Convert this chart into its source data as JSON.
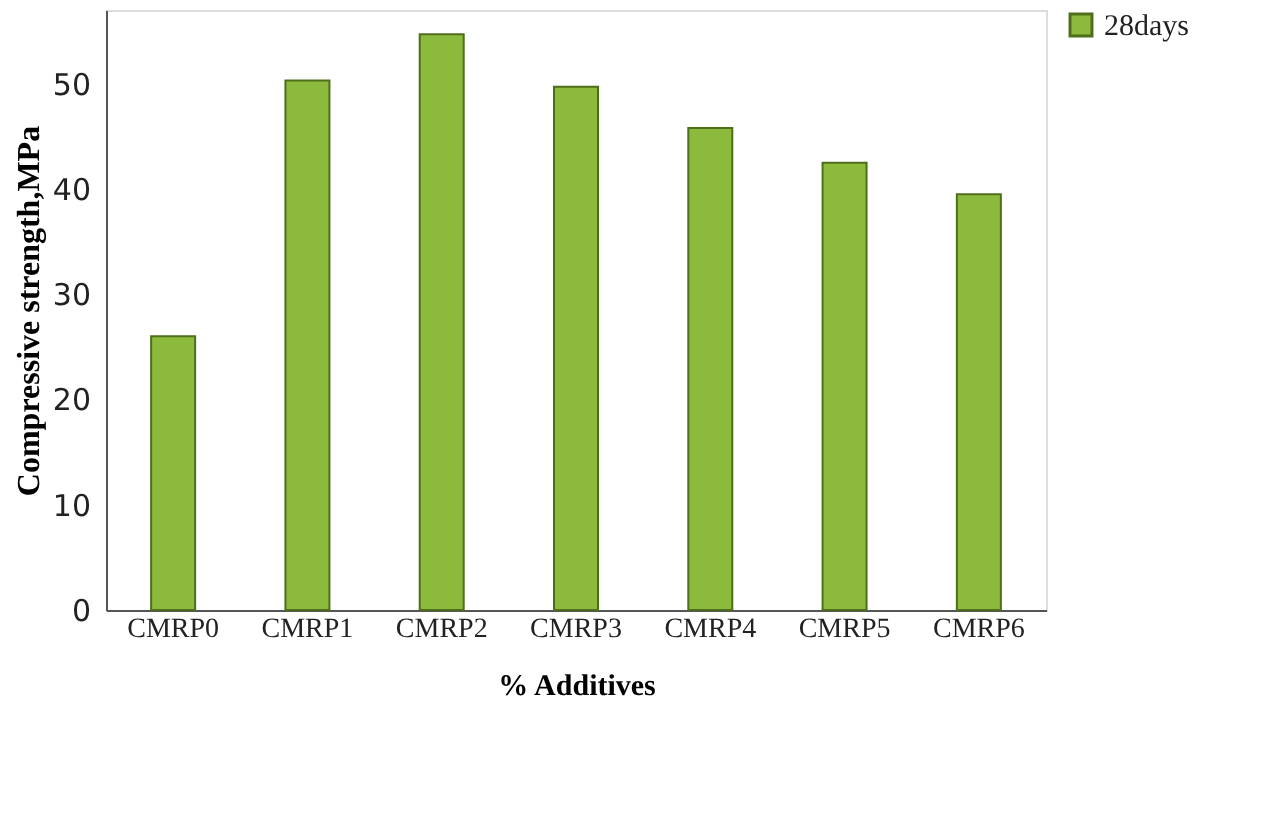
{
  "chart_data": {
    "type": "bar",
    "xlabel": "% Additives",
    "ylabel": "Compressive strength,MPa",
    "categories": [
      "CMRP0",
      "CMRP1",
      "CMRP2",
      "CMRP3",
      "CMRP4",
      "CMRP5",
      "CMRP6"
    ],
    "series": [
      {
        "name": "28days",
        "color": "#8cba3c",
        "values": [
          26.0,
          50.3,
          54.7,
          49.7,
          45.8,
          42.5,
          39.5
        ]
      }
    ],
    "ylim": [
      0,
      57
    ],
    "yticks": [
      0,
      10,
      20,
      30,
      40,
      50
    ],
    "grid": false,
    "legend": "right"
  }
}
